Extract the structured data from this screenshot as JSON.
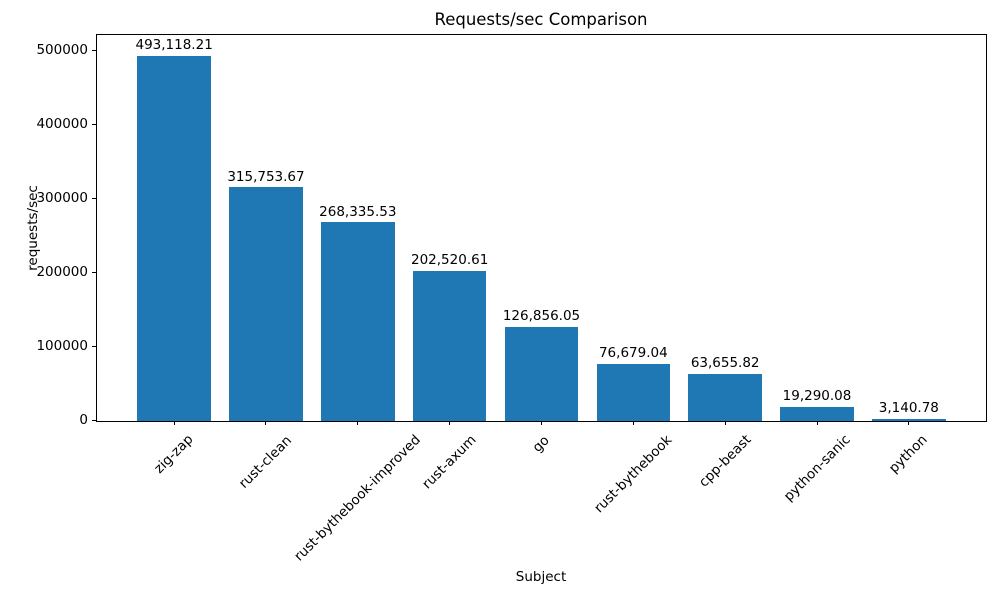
{
  "chart_data": {
    "type": "bar",
    "title": "Requests/sec Comparison",
    "xlabel": "Subject",
    "ylabel": "requests/sec",
    "categories": [
      "zig-zap",
      "rust-clean",
      "rust-bythebook-improved",
      "rust-axum",
      "go",
      "rust-bythebook",
      "cpp-beast",
      "python-sanic",
      "python"
    ],
    "values": [
      493118.21,
      315753.67,
      268335.53,
      202520.61,
      126856.05,
      76679.04,
      63655.82,
      19290.08,
      3140.78
    ],
    "value_labels": [
      "493,118.21",
      "315,753.67",
      "268,335.53",
      "202,520.61",
      "126,856.05",
      "76,679.04",
      "63,655.82",
      "19,290.08",
      "3,140.78"
    ],
    "yticks": [
      0,
      100000,
      200000,
      300000,
      400000,
      500000
    ],
    "ytick_labels": [
      "0",
      "100000",
      "200000",
      "300000",
      "400000",
      "500000"
    ],
    "ylim": [
      0,
      521600
    ],
    "bar_color": "#1f77b4",
    "axis_color": "#000000",
    "grid": false,
    "legend": null
  }
}
